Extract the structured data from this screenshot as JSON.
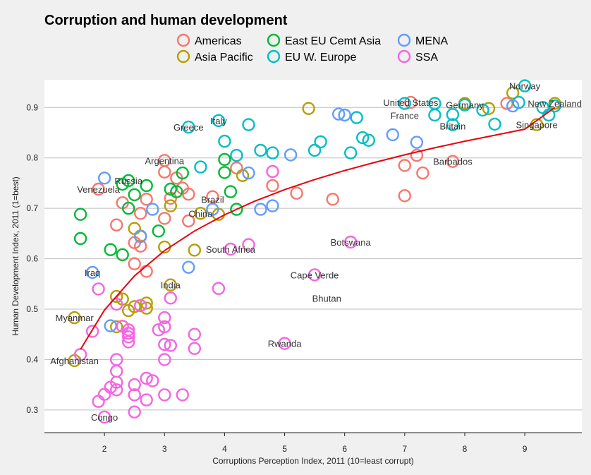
{
  "chart_data": {
    "type": "scatter",
    "title": "Corruption and human development",
    "xlabel": "Corruptions Perception Index, 2011 (10=least corrupt)",
    "ylabel": "Human Development Index, 2011 (1=best)",
    "xlim": [
      1.0,
      9.95
    ],
    "ylim": [
      0.255,
      0.955
    ],
    "xticks": [
      2,
      3,
      4,
      5,
      6,
      7,
      8,
      9
    ],
    "yticks": [
      0.3,
      0.4,
      0.5,
      0.6,
      0.7,
      0.8,
      0.9
    ],
    "gridlines": "horizontal",
    "legend_position": "top",
    "series": [
      {
        "name": "Americas",
        "color": "#F8766D",
        "points": [
          [
            1.9,
            0.738
          ],
          [
            2.2,
            0.667
          ],
          [
            2.3,
            0.711
          ],
          [
            2.5,
            0.632
          ],
          [
            2.5,
            0.59
          ],
          [
            2.6,
            0.69
          ],
          [
            2.6,
            0.625
          ],
          [
            2.7,
            0.575
          ],
          [
            2.7,
            0.718
          ],
          [
            3.0,
            0.795
          ],
          [
            3.0,
            0.772
          ],
          [
            3.0,
            0.68
          ],
          [
            3.1,
            0.72
          ],
          [
            3.2,
            0.76
          ],
          [
            3.3,
            0.74
          ],
          [
            3.4,
            0.728
          ],
          [
            3.4,
            0.675
          ],
          [
            3.8,
            0.723
          ],
          [
            4.2,
            0.78
          ],
          [
            4.8,
            0.745
          ],
          [
            5.2,
            0.73
          ],
          [
            5.8,
            0.718
          ],
          [
            7.0,
            0.725
          ],
          [
            7.0,
            0.785
          ],
          [
            7.1,
            0.91
          ],
          [
            7.2,
            0.805
          ],
          [
            7.3,
            0.77
          ],
          [
            7.8,
            0.793
          ],
          [
            8.7,
            0.908
          ]
        ]
      },
      {
        "name": "Asia Pacific",
        "color": "#B79F00",
        "points": [
          [
            1.5,
            0.398
          ],
          [
            1.5,
            0.483
          ],
          [
            2.2,
            0.525
          ],
          [
            2.2,
            0.465
          ],
          [
            2.3,
            0.52
          ],
          [
            2.4,
            0.497
          ],
          [
            2.5,
            0.505
          ],
          [
            2.5,
            0.66
          ],
          [
            2.6,
            0.645
          ],
          [
            2.7,
            0.512
          ],
          [
            2.7,
            0.502
          ],
          [
            3.0,
            0.623
          ],
          [
            3.1,
            0.548
          ],
          [
            3.1,
            0.705
          ],
          [
            3.5,
            0.617
          ],
          [
            3.6,
            0.69
          ],
          [
            3.9,
            0.688
          ],
          [
            4.3,
            0.765
          ],
          [
            5.4,
            0.898
          ],
          [
            8.0,
            0.908
          ],
          [
            8.4,
            0.898
          ],
          [
            8.8,
            0.929
          ],
          [
            9.2,
            0.866
          ],
          [
            9.5,
            0.908
          ]
        ]
      },
      {
        "name": "East EU Cemt Asia",
        "color": "#00BA38",
        "points": [
          [
            1.6,
            0.688
          ],
          [
            1.6,
            0.64
          ],
          [
            2.1,
            0.618
          ],
          [
            2.3,
            0.608
          ],
          [
            2.3,
            0.748
          ],
          [
            2.4,
            0.755
          ],
          [
            2.4,
            0.7
          ],
          [
            2.5,
            0.727
          ],
          [
            2.7,
            0.745
          ],
          [
            2.9,
            0.655
          ],
          [
            3.1,
            0.738
          ],
          [
            3.2,
            0.733
          ],
          [
            3.3,
            0.77
          ],
          [
            4.0,
            0.771
          ],
          [
            4.0,
            0.797
          ],
          [
            4.1,
            0.733
          ],
          [
            4.2,
            0.698
          ]
        ]
      },
      {
        "name": "EU W. Europe",
        "color": "#00BFC4",
        "points": [
          [
            3.4,
            0.861
          ],
          [
            3.6,
            0.782
          ],
          [
            3.9,
            0.874
          ],
          [
            4.0,
            0.833
          ],
          [
            4.2,
            0.805
          ],
          [
            4.4,
            0.866
          ],
          [
            4.6,
            0.815
          ],
          [
            4.8,
            0.81
          ],
          [
            5.5,
            0.815
          ],
          [
            5.6,
            0.832
          ],
          [
            6.1,
            0.81
          ],
          [
            6.2,
            0.88
          ],
          [
            6.3,
            0.84
          ],
          [
            6.4,
            0.835
          ],
          [
            7.0,
            0.908
          ],
          [
            7.5,
            0.908
          ],
          [
            7.5,
            0.885
          ],
          [
            7.8,
            0.886
          ],
          [
            7.8,
            0.866
          ],
          [
            8.0,
            0.905
          ],
          [
            8.3,
            0.895
          ],
          [
            8.5,
            0.867
          ],
          [
            8.9,
            0.91
          ],
          [
            9.0,
            0.943
          ],
          [
            9.3,
            0.9
          ],
          [
            9.4,
            0.885
          ],
          [
            9.5,
            0.903
          ]
        ]
      },
      {
        "name": "MENA",
        "color": "#619CFF",
        "points": [
          [
            1.8,
            0.573
          ],
          [
            2.0,
            0.76
          ],
          [
            2.1,
            0.467
          ],
          [
            2.6,
            0.644
          ],
          [
            2.8,
            0.698
          ],
          [
            3.4,
            0.583
          ],
          [
            3.8,
            0.698
          ],
          [
            4.4,
            0.77
          ],
          [
            4.6,
            0.698
          ],
          [
            4.8,
            0.705
          ],
          [
            5.1,
            0.806
          ],
          [
            5.9,
            0.887
          ],
          [
            6.0,
            0.885
          ],
          [
            6.8,
            0.846
          ],
          [
            7.2,
            0.831
          ],
          [
            8.8,
            0.903
          ]
        ]
      },
      {
        "name": "SSA",
        "color": "#F564E3",
        "points": [
          [
            1.9,
            0.317
          ],
          [
            2.0,
            0.286
          ],
          [
            2.0,
            0.331
          ],
          [
            1.9,
            0.54
          ],
          [
            1.6,
            0.41
          ],
          [
            1.8,
            0.456
          ],
          [
            2.1,
            0.345
          ],
          [
            2.2,
            0.34
          ],
          [
            2.2,
            0.355
          ],
          [
            2.2,
            0.4
          ],
          [
            2.2,
            0.377
          ],
          [
            2.2,
            0.51
          ],
          [
            2.3,
            0.466
          ],
          [
            2.4,
            0.459
          ],
          [
            2.4,
            0.452
          ],
          [
            2.4,
            0.435
          ],
          [
            2.4,
            0.445
          ],
          [
            2.5,
            0.35
          ],
          [
            2.5,
            0.33
          ],
          [
            2.5,
            0.296
          ],
          [
            2.6,
            0.507
          ],
          [
            2.7,
            0.363
          ],
          [
            2.7,
            0.32
          ],
          [
            2.8,
            0.358
          ],
          [
            2.9,
            0.459
          ],
          [
            3.0,
            0.483
          ],
          [
            3.0,
            0.465
          ],
          [
            3.0,
            0.43
          ],
          [
            3.0,
            0.4
          ],
          [
            3.0,
            0.33
          ],
          [
            3.1,
            0.428
          ],
          [
            3.1,
            0.522
          ],
          [
            3.3,
            0.33
          ],
          [
            3.5,
            0.45
          ],
          [
            3.5,
            0.422
          ],
          [
            3.9,
            0.541
          ],
          [
            4.1,
            0.619
          ],
          [
            4.4,
            0.628
          ],
          [
            4.8,
            0.773
          ],
          [
            5.0,
            0.432
          ],
          [
            5.5,
            0.568
          ],
          [
            6.1,
            0.633
          ]
        ]
      }
    ],
    "trend_line": {
      "color": "#E8000B",
      "points": [
        [
          1.6,
          0.42
        ],
        [
          2.0,
          0.498
        ],
        [
          2.5,
          0.566
        ],
        [
          3.0,
          0.616
        ],
        [
          3.5,
          0.655
        ],
        [
          4.0,
          0.687
        ],
        [
          4.5,
          0.714
        ],
        [
          5.0,
          0.737
        ],
        [
          5.5,
          0.757
        ],
        [
          6.0,
          0.775
        ],
        [
          6.5,
          0.791
        ],
        [
          7.0,
          0.806
        ],
        [
          7.5,
          0.82
        ],
        [
          8.0,
          0.833
        ],
        [
          8.5,
          0.845
        ],
        [
          9.0,
          0.857
        ],
        [
          9.5,
          0.9
        ]
      ]
    },
    "annotations": [
      {
        "text": "Congo",
        "x": 2.0,
        "y": 0.286
      },
      {
        "text": "Afghanistan",
        "x": 1.5,
        "y": 0.398
      },
      {
        "text": "Myanmar",
        "x": 1.5,
        "y": 0.483
      },
      {
        "text": "Iraq",
        "x": 1.8,
        "y": 0.573
      },
      {
        "text": "Venezuela",
        "x": 1.9,
        "y": 0.738
      },
      {
        "text": "Russia",
        "x": 2.4,
        "y": 0.755
      },
      {
        "text": "Argentina",
        "x": 3.0,
        "y": 0.795
      },
      {
        "text": "Greece",
        "x": 3.4,
        "y": 0.861
      },
      {
        "text": "Italy",
        "x": 3.9,
        "y": 0.874
      },
      {
        "text": "Brazil",
        "x": 3.8,
        "y": 0.718
      },
      {
        "text": "China",
        "x": 3.6,
        "y": 0.69
      },
      {
        "text": "South Africa",
        "x": 4.1,
        "y": 0.619
      },
      {
        "text": "India",
        "x": 3.1,
        "y": 0.548
      },
      {
        "text": "Botswana",
        "x": 6.1,
        "y": 0.633
      },
      {
        "text": "Cape Verde",
        "x": 5.5,
        "y": 0.568
      },
      {
        "text": "Bhutan",
        "x": 5.7,
        "y": 0.522
      },
      {
        "text": "Rwanda",
        "x": 5.0,
        "y": 0.432
      },
      {
        "text": "United States",
        "x": 7.1,
        "y": 0.91
      },
      {
        "text": "France",
        "x": 7.0,
        "y": 0.884
      },
      {
        "text": "Germany",
        "x": 8.0,
        "y": 0.905
      },
      {
        "text": "Britain",
        "x": 7.8,
        "y": 0.863
      },
      {
        "text": "Barbados",
        "x": 7.8,
        "y": 0.793
      },
      {
        "text": "Norway",
        "x": 9.0,
        "y": 0.943
      },
      {
        "text": "New Zealand",
        "x": 9.5,
        "y": 0.908
      },
      {
        "text": "Singapore",
        "x": 9.2,
        "y": 0.866
      }
    ]
  }
}
